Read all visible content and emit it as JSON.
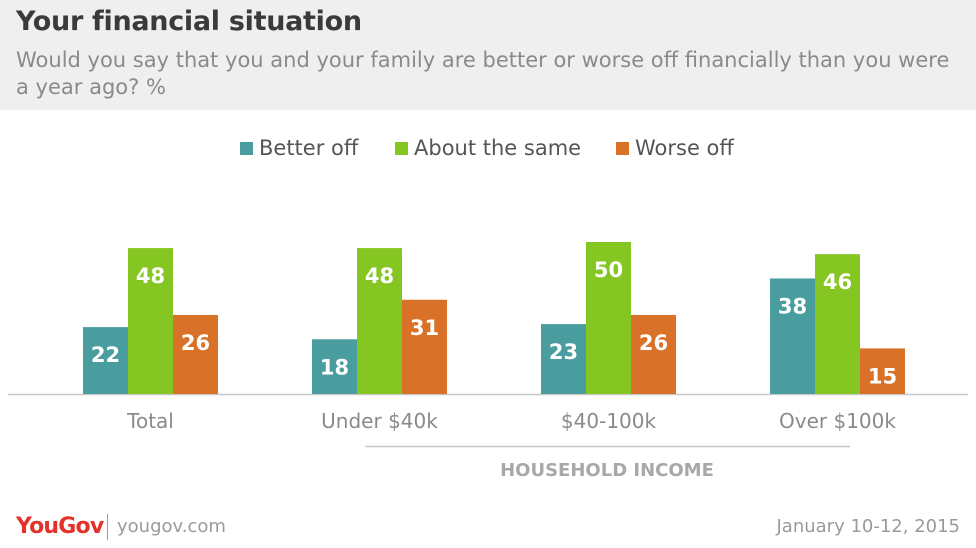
{
  "header": {
    "title": "Your financial situation",
    "subtitle": "Would you say that you and your family are better or worse off financially than you were a year ago? %"
  },
  "footer": {
    "brand": "YouGov",
    "site": "yougov.com",
    "date": "January 10-12, 2015"
  },
  "colors": {
    "better_off": "#4a9d9f",
    "about_the_same": "#86c623",
    "worse_off": "#d97128",
    "header_bg": "#efefef"
  },
  "chart_data": {
    "type": "bar",
    "categories": [
      "Total",
      "Under $40k",
      "$40-100k",
      "Over $100k"
    ],
    "series": [
      {
        "name": "Better off",
        "values": [
          22,
          18,
          23,
          38
        ]
      },
      {
        "name": "About the same",
        "values": [
          48,
          48,
          50,
          46
        ]
      },
      {
        "name": "Worse off",
        "values": [
          26,
          31,
          26,
          15
        ]
      }
    ],
    "group_label": "HOUSEHOLD INCOME",
    "group_categories": [
      "Under $40k",
      "$40-100k",
      "Over $100k"
    ],
    "ylim": [
      0,
      50
    ],
    "legend_position": "top",
    "grid": false
  }
}
